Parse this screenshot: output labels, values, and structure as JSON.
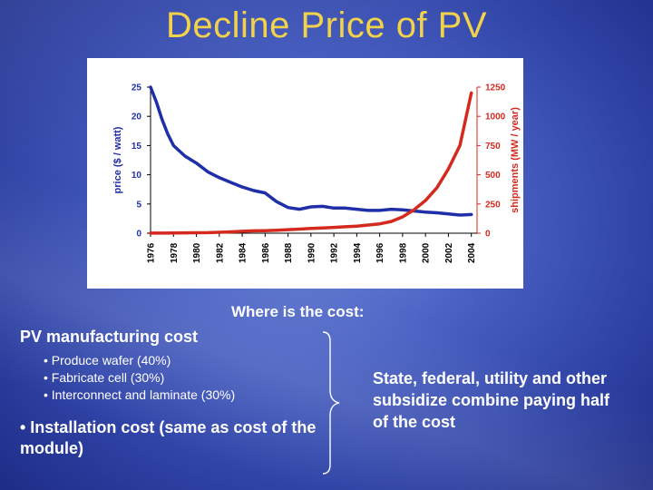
{
  "slide": {
    "title": "Decline Price of PV",
    "cost_heading": "Where is the cost:",
    "manufacturing_heading": "PV manufacturing cost",
    "manufacturing_items": [
      "• Produce wafer (40%)",
      "• Fabricate cell (30%)",
      "• Interconnect and laminate (30%)"
    ],
    "installation_text": "• Installation cost (same as cost of the module)",
    "subsidy_text": "State, federal, utility and other subsidize combine paying half of the cost"
  },
  "chart_data": {
    "type": "line",
    "ylabel": "price ($ / watt)",
    "y2label": "shipments (MW / year)",
    "ylim": [
      0,
      25
    ],
    "y2lim": [
      0,
      1250
    ],
    "xlim": [
      1976,
      2004.5
    ],
    "yticks": [
      "25",
      "20",
      "15",
      "10",
      "5",
      "0"
    ],
    "y2ticks": [
      "1250",
      "1000",
      "750",
      "500",
      "250",
      "0"
    ],
    "xticks": [
      "1976",
      "1978",
      "1980",
      "1982",
      "1984",
      "1986",
      "1988",
      "1990",
      "1992",
      "1994",
      "1996",
      "1998",
      "2000",
      "2002",
      "2004"
    ],
    "grid": false,
    "series": [
      {
        "axis": "left",
        "color": "#1f2fa8",
        "x": [
          1976,
          1976.5,
          1977,
          1977.5,
          1978,
          1979,
          1980,
          1981,
          1982,
          1983,
          1984,
          1985,
          1986,
          1987,
          1988,
          1989,
          1990,
          1991,
          1992,
          1993,
          1994,
          1995,
          1996,
          1997,
          1998,
          1999,
          2000,
          2001,
          2002,
          2003,
          2004
        ],
        "values": [
          25,
          22.5,
          19.5,
          17,
          15,
          13.2,
          12,
          10.5,
          9.5,
          8.7,
          7.9,
          7.3,
          6.9,
          5.4,
          4.4,
          4.1,
          4.5,
          4.6,
          4.3,
          4.3,
          4.1,
          3.9,
          3.9,
          4.1,
          4.0,
          3.8,
          3.6,
          3.5,
          3.3,
          3.1,
          3.2
        ]
      },
      {
        "axis": "right",
        "color": "#d42a1e",
        "x": [
          1976,
          1977,
          1978,
          1979,
          1980,
          1981,
          1982,
          1983,
          1984,
          1985,
          1986,
          1987,
          1988,
          1989,
          1990,
          1991,
          1992,
          1993,
          1994,
          1995,
          1996,
          1997,
          1998,
          1999,
          2000,
          2001,
          2002,
          2003,
          2004
        ],
        "values": [
          1,
          1,
          2,
          3,
          4,
          5,
          8,
          12,
          16,
          20,
          22,
          25,
          30,
          35,
          40,
          45,
          50,
          55,
          60,
          70,
          80,
          100,
          140,
          200,
          280,
          390,
          550,
          750,
          1200
        ]
      }
    ]
  }
}
